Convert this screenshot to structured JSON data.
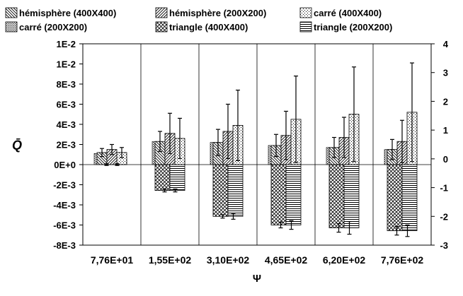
{
  "chart_data": {
    "type": "bar",
    "categories": [
      "7,76E+01",
      "1,55E+02",
      "3,10E+02",
      "4,65E+02",
      "6,20E+02",
      "7,76E+02"
    ],
    "xlabel": "Ψ",
    "ylabel": "Q̄",
    "left_axis": {
      "range": [
        -0.008,
        0.012
      ],
      "ticks": [
        -0.008,
        -0.006,
        -0.004,
        -0.002,
        0,
        0.002,
        0.004,
        0.006,
        0.008,
        0.01,
        0.012
      ],
      "tick_labels": [
        "-8E-3",
        "-6E-3",
        "-4E-3",
        "-2E-3",
        "0E+0",
        "2E-3",
        "4E-3",
        "6E-3",
        "8E-3",
        "1E-2",
        "1E-2"
      ]
    },
    "right_axis": {
      "range": [
        -3,
        4
      ],
      "ticks": [
        -3,
        -2,
        -1,
        0,
        1,
        2,
        3,
        4
      ],
      "tick_labels": [
        "-3",
        "-2",
        "-1",
        "0",
        "1",
        "2",
        "3",
        "4"
      ]
    },
    "grid": "vertical category separators",
    "legend_position": "top",
    "series": [
      {
        "name": "hémisphère (400X400)",
        "pattern": "backdiag",
        "axis": "left",
        "values": [
          0.0012,
          0.0023,
          0.0022,
          0.0019,
          0.0017,
          0.0015
        ],
        "errors": [
          0.0004,
          0.001,
          0.0013,
          0.0011,
          0.001,
          0.001
        ]
      },
      {
        "name": "hémisphère (200X200)",
        "pattern": "fwddiag",
        "axis": "left",
        "values": [
          0.0015,
          0.0031,
          0.0033,
          0.0029,
          0.0027,
          0.0023
        ],
        "errors": [
          0.0005,
          0.002,
          0.0027,
          0.0024,
          0.002,
          0.0021
        ]
      },
      {
        "name": "carré (400X400)",
        "pattern": "dots",
        "axis": "left",
        "values": [
          0.0012,
          0.0026,
          0.0039,
          0.0045,
          0.005,
          0.0052
        ],
        "errors": [
          0.0005,
          0.002,
          0.0035,
          0.0043,
          0.0047,
          0.0049
        ]
      },
      {
        "name": "carré (200X200)",
        "pattern": "dense-dots",
        "axis": "left",
        "values": [
          0.0011,
          0.0023,
          0.0022,
          0.0019,
          0.0017,
          0.0015
        ],
        "errors": [
          0,
          0,
          0,
          0,
          0,
          0
        ]
      },
      {
        "name": "triangle (400X400)",
        "pattern": "crosshatch",
        "axis": "right",
        "values": [
          -0.2,
          -1.1,
          -2.0,
          -2.3,
          -2.4,
          -2.5
        ],
        "errors": [
          0.03,
          0.05,
          0.06,
          0.1,
          0.15,
          0.15
        ]
      },
      {
        "name": "triangle (200X200)",
        "pattern": "hlines",
        "axis": "right",
        "values": [
          -0.2,
          -1.1,
          -2.0,
          -2.3,
          -2.4,
          -2.5
        ],
        "errors": [
          0.03,
          0.05,
          0.1,
          0.15,
          0.22,
          0.2
        ]
      }
    ]
  }
}
